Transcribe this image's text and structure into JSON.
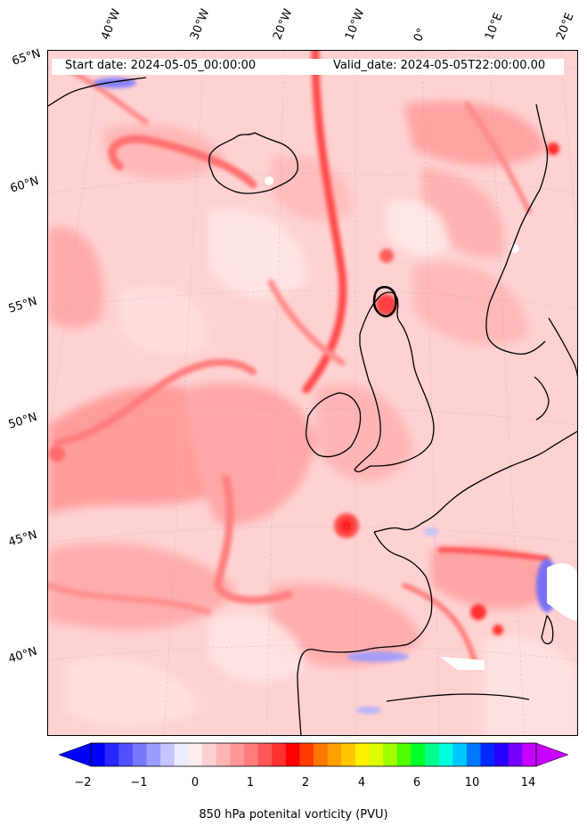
{
  "header": {
    "start_date": "Start date: 2024-05-05_00:00:00",
    "valid_date": "Valid_date: 2024-05-05T22:00:00.00"
  },
  "longitude_labels": [
    "40°W",
    "30°W",
    "20°W",
    "10°W",
    "0°",
    "10°E",
    "20°E"
  ],
  "latitude_labels": [
    "65°N",
    "60°N",
    "55°N",
    "50°N",
    "45°N",
    "40°N"
  ],
  "colorbar": {
    "title": "850 hPa potenital vorticity (PVU)",
    "tick_labels": [
      "−2",
      "−1",
      "0",
      "1",
      "2",
      "4",
      "6",
      "10",
      "14"
    ],
    "colors": [
      "#0000ff",
      "#2828ff",
      "#5050ff",
      "#7878ff",
      "#9c9cff",
      "#c4c4ff",
      "#ececff",
      "#ffecec",
      "#ffd0d0",
      "#ffb4b4",
      "#ff9898",
      "#ff7c7c",
      "#ff5858",
      "#ff3030",
      "#ff0000",
      "#ff3c00",
      "#ff7800",
      "#ffa000",
      "#ffc800",
      "#fff000",
      "#dcff00",
      "#a0ff00",
      "#50ff00",
      "#00ff28",
      "#00ff8c",
      "#00ffdc",
      "#00c8ff",
      "#0078ff",
      "#0028ff",
      "#2800ff",
      "#7800ff",
      "#c800ff"
    ],
    "under_color": "#0000ff",
    "over_color": "#c800ff"
  }
}
